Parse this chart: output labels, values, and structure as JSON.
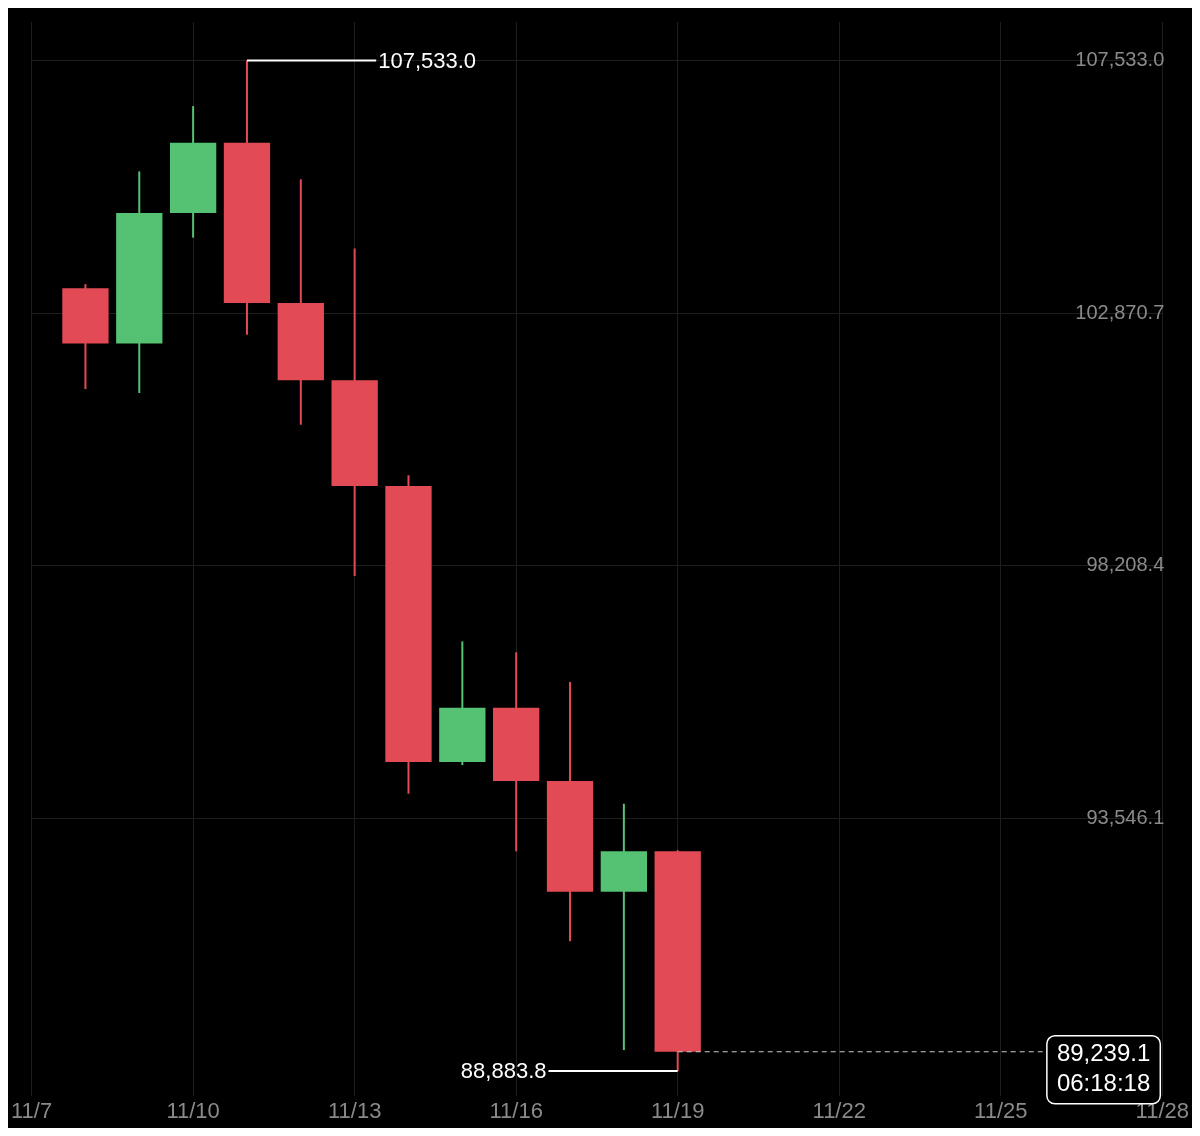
{
  "chart_data": {
    "type": "candlestick",
    "x": [
      "--11-08",
      "--11-09",
      "--11-10",
      "--11-11",
      "--11-12",
      "--11-13",
      "--11-14",
      "--11-15",
      "--11-16",
      "--11-17",
      "--11-18",
      "--11-19"
    ],
    "ohlc": [
      [
        103333,
        103406,
        101470,
        102310
      ],
      [
        102310,
        105488,
        101397,
        104720
      ],
      [
        104720,
        106693,
        104264,
        106017
      ],
      [
        106017,
        107533.0,
        102474,
        103059
      ],
      [
        103059,
        105341,
        100812,
        101634
      ],
      [
        101634,
        104063,
        98018,
        99680
      ],
      [
        99680,
        99881,
        94000,
        94585
      ],
      [
        94585,
        96813,
        94530,
        95589
      ],
      [
        95589,
        96612,
        92941,
        94238
      ],
      [
        94238,
        96064,
        91279,
        92192
      ],
      [
        92192,
        93817,
        89270,
        92941
      ],
      [
        92941,
        92960,
        88883.8,
        89239.1
      ]
    ],
    "colors": [
      "#e24b55",
      "#55c173",
      "#55c173",
      "#e24b55",
      "#e24b55",
      "#e24b55",
      "#e24b55",
      "#55c173",
      "#e24b55",
      "#e24b55",
      "#55c173",
      "#e24b55"
    ],
    "xlim": [
      "--11-07",
      "--11-28"
    ],
    "xticks": [
      {
        "value": "--11-07",
        "label": "11/7"
      },
      {
        "value": "--11-10",
        "label": "11/10"
      },
      {
        "value": "--11-13",
        "label": "11/13"
      },
      {
        "value": "--11-16",
        "label": "11/16"
      },
      {
        "value": "--11-19",
        "label": "11/19"
      },
      {
        "value": "--11-22",
        "label": "11/22"
      },
      {
        "value": "--11-25",
        "label": "11/25"
      },
      {
        "value": "--11-28",
        "label": "11/28"
      }
    ],
    "ylim": [
      88430,
      108245
    ],
    "yticks": [
      {
        "value": 93546.1,
        "label": "93,546.1"
      },
      {
        "value": 98208.4,
        "label": "98,208.4"
      },
      {
        "value": 102870.7,
        "label": "102,870.7"
      },
      {
        "value": 107533.0,
        "label": "107,533.0"
      }
    ],
    "grid": true,
    "ref_lines": [
      {
        "axis": "y",
        "value": 89239.1,
        "label": "89,239.1",
        "color": "#cccccc",
        "line_style": "dashed"
      }
    ],
    "annotations": [
      {
        "text": "107,533.0",
        "x": "--11-11",
        "y": 107533.0
      },
      {
        "text": "88,883.8",
        "x": "--11-19",
        "y": 88883.8
      },
      "06:18:18"
    ]
  }
}
